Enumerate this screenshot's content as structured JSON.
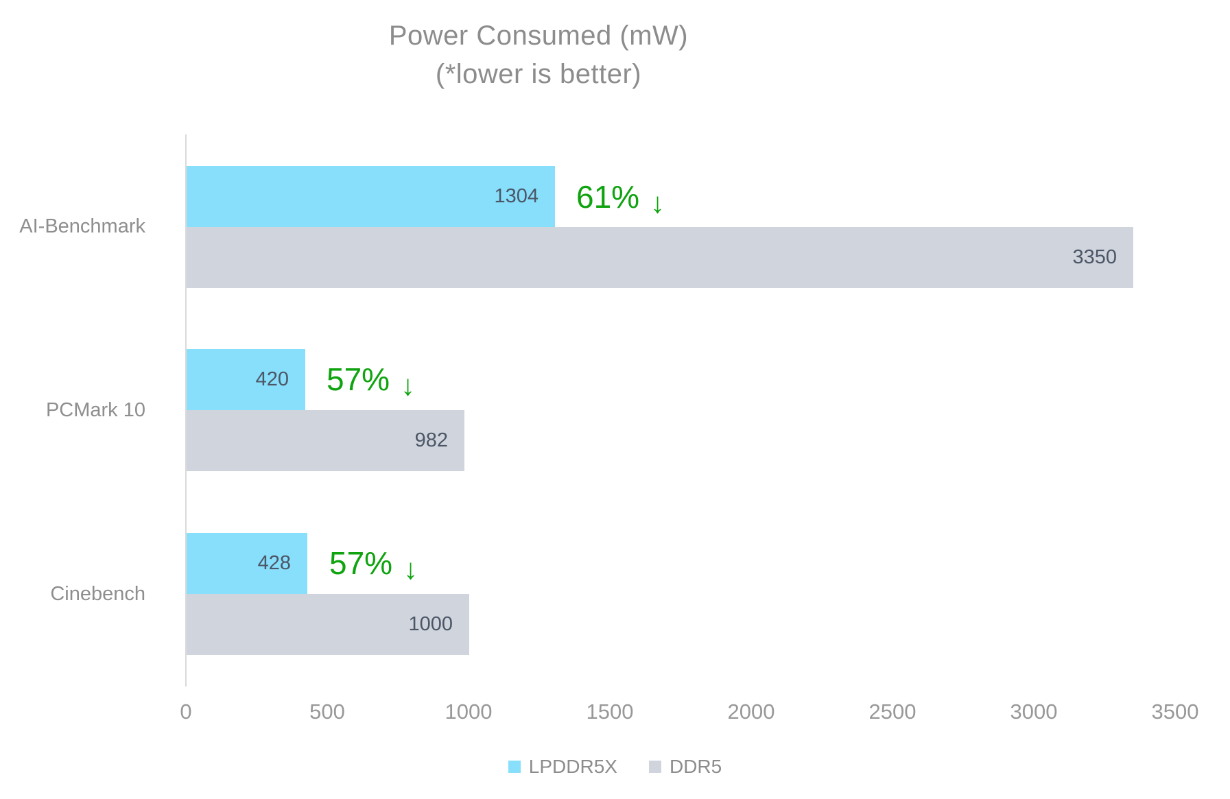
{
  "title": {
    "line1": "Power Consumed (mW)",
    "line2": "(*lower is better)"
  },
  "colors": {
    "lpddr5x_bar": "#87dffb",
    "ddr5_bar": "#d0d5dd",
    "value_text": "#4c5666",
    "reduction_green": "#0fa30f",
    "title_text": "#8c8c8c",
    "axis_line": "#dadada"
  },
  "chart_data": {
    "type": "bar",
    "orientation": "horizontal",
    "title": "Power Consumed (mW) (*lower is better)",
    "categories": [
      "AI-Benchmark",
      "PCMark 10",
      "Cinebench"
    ],
    "series": [
      {
        "name": "LPDDR5X",
        "color": "#87dffb",
        "values": [
          1304,
          420,
          428
        ]
      },
      {
        "name": "DDR5",
        "color": "#d0d5dd",
        "values": [
          3350,
          982,
          1000
        ]
      }
    ],
    "annotations": [
      {
        "text": "61%",
        "arrow": "↓"
      },
      {
        "text": "57%",
        "arrow": "↓"
      },
      {
        "text": "57%",
        "arrow": "↓"
      }
    ],
    "xlim": [
      0,
      3500
    ],
    "xticks": [
      0,
      500,
      1000,
      1500,
      2000,
      2500,
      3000,
      3500
    ],
    "grid": false,
    "legend_position": "bottom"
  },
  "legend": {
    "items": [
      {
        "label": "LPDDR5X"
      },
      {
        "label": "DDR5"
      }
    ]
  }
}
